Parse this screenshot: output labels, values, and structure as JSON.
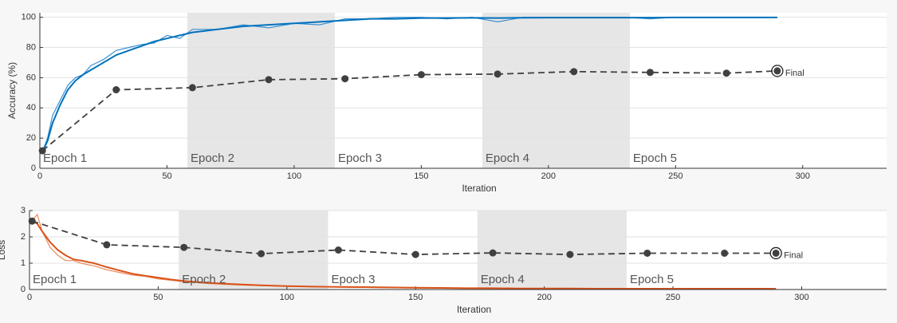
{
  "chart_data": [
    {
      "type": "line",
      "xlabel": "Iteration",
      "ylabel": "Accuracy (%)",
      "xlim": [
        0,
        333
      ],
      "ylim": [
        0,
        103
      ],
      "xticks": [
        0,
        50,
        100,
        150,
        200,
        250,
        300
      ],
      "yticks": [
        0,
        20,
        40,
        60,
        80,
        100
      ],
      "grid": true,
      "epochs": [
        {
          "label": "Epoch 1",
          "start": 0,
          "end": 58,
          "shaded": false
        },
        {
          "label": "Epoch 2",
          "start": 58,
          "end": 116,
          "shaded": true
        },
        {
          "label": "Epoch 3",
          "start": 116,
          "end": 174,
          "shaded": false
        },
        {
          "label": "Epoch 4",
          "start": 174,
          "end": 232,
          "shaded": true
        },
        {
          "label": "Epoch 5",
          "start": 232,
          "end": 290,
          "shaded": false
        }
      ],
      "final_label": "Final",
      "series": [
        {
          "color": "#3d8fd1",
          "width": 1.2,
          "x": [
            1,
            3,
            5,
            8,
            11,
            14,
            17,
            20,
            25,
            30,
            35,
            40,
            45,
            50,
            55,
            60,
            70,
            80,
            90,
            100,
            110,
            120,
            130,
            140,
            150,
            160,
            170,
            180,
            190,
            200,
            210,
            220,
            230,
            240,
            250,
            260,
            270,
            280,
            290
          ],
          "values": [
            11,
            20,
            35,
            45,
            55,
            60,
            62,
            68,
            72,
            78,
            80,
            82,
            83,
            88,
            86,
            92,
            92,
            95,
            93,
            96,
            95,
            99,
            99,
            100,
            100,
            99,
            100,
            97,
            100,
            100,
            100,
            100,
            100,
            99,
            100,
            100,
            100,
            100,
            100
          ]
        },
        {
          "color": "#0072bd",
          "width": 2,
          "x": [
            1,
            3,
            5,
            8,
            11,
            14,
            17,
            20,
            25,
            30,
            35,
            40,
            45,
            50,
            55,
            60,
            70,
            80,
            90,
            100,
            110,
            120,
            130,
            140,
            150,
            160,
            170,
            180,
            190,
            200,
            210,
            220,
            230,
            240,
            250,
            260,
            270,
            280,
            290
          ],
          "values": [
            11,
            18,
            30,
            42,
            52,
            58,
            62,
            65,
            70,
            75,
            78,
            81,
            84,
            86,
            88,
            90,
            92,
            94,
            95,
            96,
            97,
            98,
            99,
            99,
            99.5,
            99.5,
            99.6,
            99.5,
            99.7,
            99.8,
            99.8,
            99.8,
            99.8,
            99.8,
            99.9,
            99.9,
            99.9,
            99.9,
            99.9
          ]
        },
        {
          "color": "#404040",
          "width": 1.8,
          "line_style": "dashed",
          "markers": true,
          "final": true,
          "x": [
            1,
            30,
            60,
            90,
            120,
            150,
            180,
            210,
            240,
            270,
            290
          ],
          "values": [
            11.6,
            52,
            53.4,
            58.7,
            59.3,
            62,
            62.4,
            64,
            63.5,
            63,
            64.5
          ]
        }
      ]
    },
    {
      "type": "line",
      "xlabel": "Iteration",
      "ylabel": "Loss",
      "xlim": [
        0,
        333
      ],
      "ylim": [
        0,
        3
      ],
      "xticks": [
        0,
        50,
        100,
        150,
        200,
        250,
        300
      ],
      "yticks": [
        0,
        1,
        2,
        3
      ],
      "grid": true,
      "epochs": [
        {
          "label": "Epoch 1",
          "start": 0,
          "end": 58,
          "shaded": false
        },
        {
          "label": "Epoch 2",
          "start": 58,
          "end": 116,
          "shaded": true
        },
        {
          "label": "Epoch 3",
          "start": 116,
          "end": 174,
          "shaded": false
        },
        {
          "label": "Epoch 4",
          "start": 174,
          "end": 232,
          "shaded": true
        },
        {
          "label": "Epoch 5",
          "start": 232,
          "end": 290,
          "shaded": false
        }
      ],
      "final_label": "Final",
      "series": [
        {
          "color": "#ec8a5c",
          "width": 1.2,
          "x": [
            1,
            3,
            5,
            8,
            11,
            14,
            17,
            20,
            25,
            30,
            35,
            40,
            45,
            50,
            55,
            60,
            70,
            80,
            90,
            100,
            110,
            120,
            130,
            140,
            150,
            160,
            170,
            180,
            190,
            200,
            210,
            220,
            230,
            240,
            250,
            260,
            270,
            280,
            290
          ],
          "values": [
            2.6,
            2.85,
            2.2,
            1.6,
            1.3,
            1.1,
            1.1,
            1.0,
            0.9,
            0.75,
            0.65,
            0.55,
            0.5,
            0.4,
            0.35,
            0.3,
            0.22,
            0.18,
            0.15,
            0.12,
            0.1,
            0.09,
            0.08,
            0.07,
            0.06,
            0.05,
            0.05,
            0.04,
            0.04,
            0.04,
            0.03,
            0.03,
            0.03,
            0.03,
            0.03,
            0.02,
            0.02,
            0.02,
            0.02
          ]
        },
        {
          "color": "#d95319",
          "width": 2,
          "x": [
            1,
            3,
            5,
            8,
            11,
            14,
            17,
            20,
            25,
            30,
            35,
            40,
            45,
            50,
            55,
            60,
            70,
            80,
            90,
            100,
            110,
            120,
            130,
            140,
            150,
            160,
            170,
            180,
            190,
            200,
            210,
            220,
            230,
            240,
            250,
            260,
            270,
            280,
            290
          ],
          "values": [
            2.6,
            2.5,
            2.2,
            1.8,
            1.5,
            1.3,
            1.15,
            1.1,
            1.0,
            0.85,
            0.72,
            0.6,
            0.52,
            0.45,
            0.38,
            0.32,
            0.25,
            0.2,
            0.16,
            0.13,
            0.11,
            0.1,
            0.09,
            0.08,
            0.07,
            0.06,
            0.05,
            0.05,
            0.04,
            0.04,
            0.04,
            0.03,
            0.03,
            0.03,
            0.03,
            0.03,
            0.03,
            0.03,
            0.03
          ]
        },
        {
          "color": "#404040",
          "width": 1.8,
          "line_style": "dashed",
          "markers": true,
          "final": true,
          "x": [
            1,
            30,
            60,
            90,
            120,
            150,
            180,
            210,
            240,
            270,
            290
          ],
          "values": [
            2.6,
            1.7,
            1.6,
            1.36,
            1.5,
            1.33,
            1.39,
            1.33,
            1.38,
            1.38,
            1.38
          ]
        }
      ]
    }
  ]
}
